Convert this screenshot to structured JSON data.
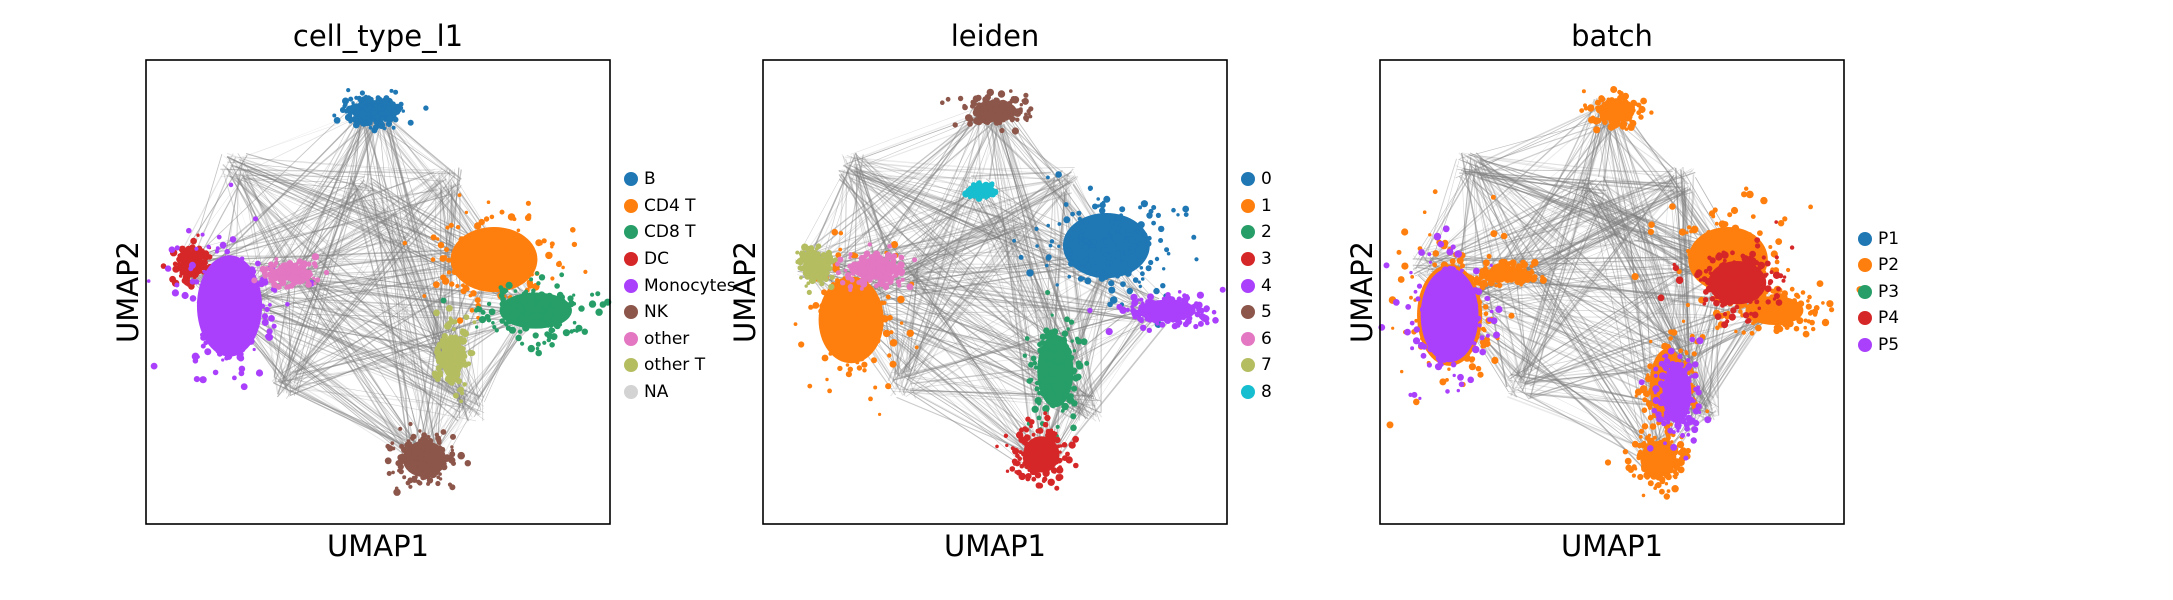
{
  "chart_data": [
    {
      "type": "scatter",
      "title": "cell_type_l1",
      "xlabel": "UMAP1",
      "ylabel": "UMAP2",
      "legend_position": "right",
      "categories": [
        {
          "name": "B",
          "color": "#1f77b4"
        },
        {
          "name": "CD4 T",
          "color": "#ff7f0e"
        },
        {
          "name": "CD8 T",
          "color": "#279e68"
        },
        {
          "name": "DC",
          "color": "#d62728"
        },
        {
          "name": "Monocytes",
          "color": "#aa40fc"
        },
        {
          "name": "NK",
          "color": "#8c564b"
        },
        {
          "name": "other",
          "color": "#e377c2"
        },
        {
          "name": "other T",
          "color": "#b5bd61"
        },
        {
          "name": "NA",
          "color": "#d3d3d3"
        }
      ],
      "clusters": [
        {
          "category": "B",
          "x": 0.49,
          "y": 0.89,
          "rx": 0.06,
          "ry": 0.03
        },
        {
          "category": "CD4 T",
          "x": 0.75,
          "y": 0.57,
          "rx": 0.12,
          "ry": 0.09
        },
        {
          "category": "CD8 T",
          "x": 0.84,
          "y": 0.46,
          "rx": 0.1,
          "ry": 0.05
        },
        {
          "category": "DC",
          "x": 0.1,
          "y": 0.56,
          "rx": 0.03,
          "ry": 0.03
        },
        {
          "category": "Monocytes",
          "x": 0.18,
          "y": 0.47,
          "rx": 0.09,
          "ry": 0.14
        },
        {
          "category": "NK",
          "x": 0.6,
          "y": 0.14,
          "rx": 0.06,
          "ry": 0.05
        },
        {
          "category": "other",
          "x": 0.31,
          "y": 0.54,
          "rx": 0.05,
          "ry": 0.02
        },
        {
          "category": "other T",
          "x": 0.66,
          "y": 0.36,
          "rx": 0.03,
          "ry": 0.06
        }
      ]
    },
    {
      "type": "scatter",
      "title": "leiden",
      "xlabel": "UMAP1",
      "ylabel": "UMAP2",
      "legend_position": "right",
      "categories": [
        {
          "name": "0",
          "color": "#1f77b4"
        },
        {
          "name": "1",
          "color": "#ff7f0e"
        },
        {
          "name": "2",
          "color": "#279e68"
        },
        {
          "name": "3",
          "color": "#d62728"
        },
        {
          "name": "4",
          "color": "#aa40fc"
        },
        {
          "name": "5",
          "color": "#8c564b"
        },
        {
          "name": "6",
          "color": "#e377c2"
        },
        {
          "name": "7",
          "color": "#b5bd61"
        },
        {
          "name": "8",
          "color": "#17becf"
        }
      ],
      "clusters": [
        {
          "category": "0",
          "x": 0.74,
          "y": 0.6,
          "rx": 0.12,
          "ry": 0.09
        },
        {
          "category": "1",
          "x": 0.19,
          "y": 0.44,
          "rx": 0.09,
          "ry": 0.12
        },
        {
          "category": "2",
          "x": 0.63,
          "y": 0.33,
          "rx": 0.05,
          "ry": 0.1
        },
        {
          "category": "3",
          "x": 0.6,
          "y": 0.15,
          "rx": 0.05,
          "ry": 0.05
        },
        {
          "category": "4",
          "x": 0.87,
          "y": 0.46,
          "rx": 0.08,
          "ry": 0.03
        },
        {
          "category": "5",
          "x": 0.5,
          "y": 0.89,
          "rx": 0.06,
          "ry": 0.03
        },
        {
          "category": "6",
          "x": 0.24,
          "y": 0.55,
          "rx": 0.06,
          "ry": 0.03
        },
        {
          "category": "7",
          "x": 0.11,
          "y": 0.56,
          "rx": 0.03,
          "ry": 0.03
        },
        {
          "category": "8",
          "x": 0.47,
          "y": 0.72,
          "rx": 0.02,
          "ry": 0.01
        }
      ]
    },
    {
      "type": "scatter",
      "title": "batch",
      "xlabel": "UMAP1",
      "ylabel": "UMAP2",
      "legend_position": "right",
      "categories": [
        {
          "name": "P1",
          "color": "#1f77b4"
        },
        {
          "name": "P2",
          "color": "#ff7f0e"
        },
        {
          "name": "P3",
          "color": "#279e68"
        },
        {
          "name": "P4",
          "color": "#d62728"
        },
        {
          "name": "P5",
          "color": "#aa40fc"
        }
      ],
      "clusters": [
        {
          "category": "P2",
          "x": 0.15,
          "y": 0.45,
          "rx": 0.09,
          "ry": 0.14
        },
        {
          "category": "P2",
          "x": 0.27,
          "y": 0.54,
          "rx": 0.05,
          "ry": 0.02
        },
        {
          "category": "P2",
          "x": 0.51,
          "y": 0.89,
          "rx": 0.05,
          "ry": 0.03
        },
        {
          "category": "P2",
          "x": 0.75,
          "y": 0.57,
          "rx": 0.11,
          "ry": 0.09
        },
        {
          "category": "P2",
          "x": 0.85,
          "y": 0.46,
          "rx": 0.08,
          "ry": 0.04
        },
        {
          "category": "P2",
          "x": 0.62,
          "y": 0.3,
          "rx": 0.05,
          "ry": 0.1
        },
        {
          "category": "P2",
          "x": 0.6,
          "y": 0.14,
          "rx": 0.05,
          "ry": 0.05
        },
        {
          "category": "P5",
          "x": 0.15,
          "y": 0.45,
          "rx": 0.08,
          "ry": 0.13
        },
        {
          "category": "P4",
          "x": 0.77,
          "y": 0.52,
          "rx": 0.08,
          "ry": 0.06
        },
        {
          "category": "P5",
          "x": 0.64,
          "y": 0.28,
          "rx": 0.04,
          "ry": 0.08
        }
      ]
    }
  ]
}
